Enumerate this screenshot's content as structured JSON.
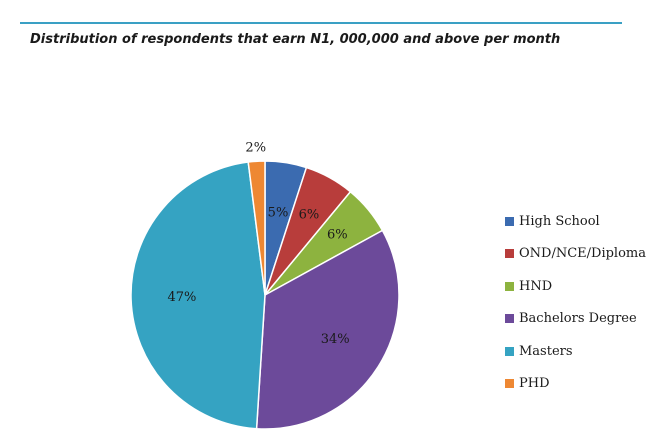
{
  "chart_data": {
    "type": "pie",
    "title": "Distribution of respondents that earn N1, 000,000 and above per month",
    "categories": [
      "High School",
      "OND/NCE/Diploma",
      "HND",
      "Bachelors Degree",
      "Masters",
      "PHD"
    ],
    "values": [
      5,
      6,
      6,
      34,
      47,
      2
    ],
    "labels": [
      "5%",
      "6%",
      "6%",
      "34%",
      "47%",
      "2%"
    ],
    "colors": [
      "#3b6bb0",
      "#b83d3b",
      "#8db33f",
      "#6c4a9a",
      "#35a3c2",
      "#ee8833"
    ],
    "legend_position": "right"
  }
}
